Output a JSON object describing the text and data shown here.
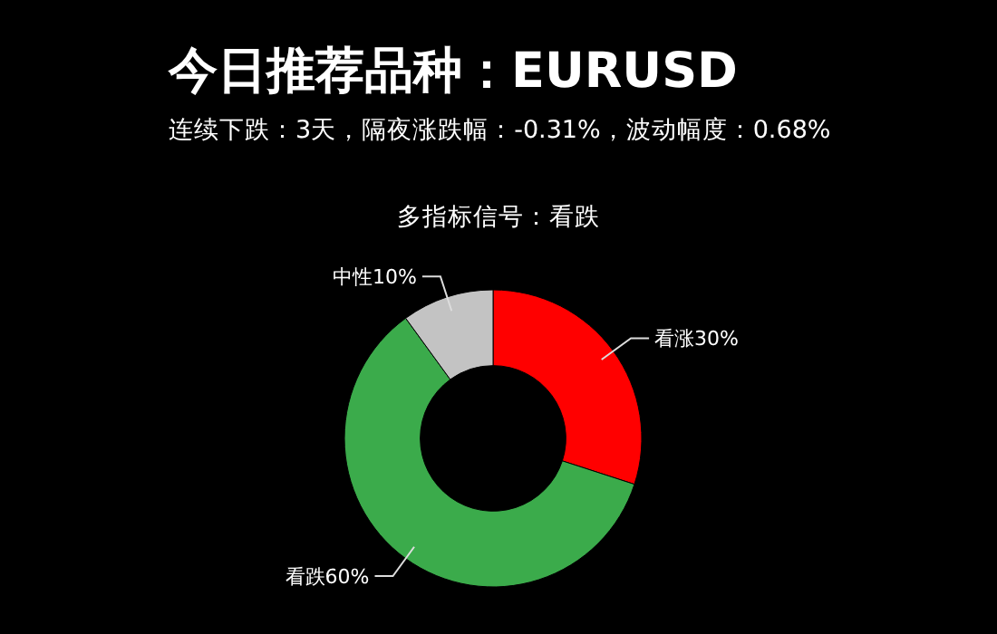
{
  "chart_data": {
    "type": "donut",
    "title": "今日推荐品种：EURUSD",
    "subtitle": "连续下跌：3天，隔夜涨跌幅：-0.31%，波动幅度：0.68%",
    "annotations": [
      "多指标信号：看跌"
    ],
    "categories": [
      "看涨",
      "看跌",
      "中性"
    ],
    "values": [
      30,
      60,
      10
    ],
    "value_labels": [
      "30%",
      "60%",
      "10%"
    ],
    "colors": [
      "#ff0000",
      "#3bab4b",
      "#c3c3c3"
    ]
  }
}
